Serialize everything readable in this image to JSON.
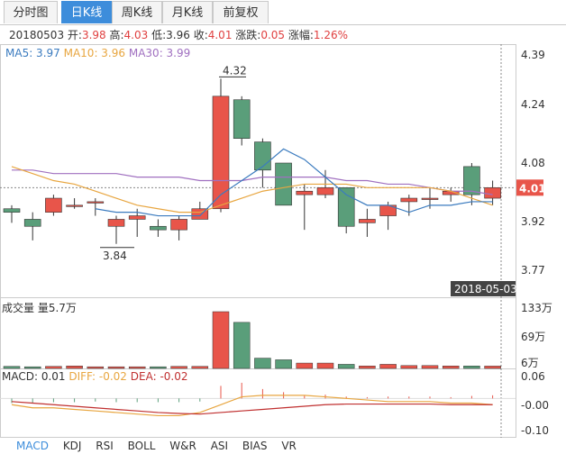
{
  "tabs": [
    {
      "label": "分时图",
      "active": false
    },
    {
      "label": "日K线",
      "active": true
    },
    {
      "label": "周K线",
      "active": false
    },
    {
      "label": "月K线",
      "active": false
    },
    {
      "label": "前复权",
      "active": false
    }
  ],
  "info": {
    "date": "20180503",
    "open_label": "开:",
    "open": "3.98",
    "high_label": "高:",
    "high": "4.03",
    "low_label": "低:",
    "low": "3.96",
    "close_label": "收:",
    "close": "4.01",
    "change_label": "涨跌:",
    "change": "0.05",
    "pct_label": "涨幅:",
    "pct": "1.26%"
  },
  "ma_legend": {
    "ma5": "MA5: 3.97",
    "ma10": "MA10: 3.96",
    "ma30": "MA30: 3.99"
  },
  "vol_legend": "成交量 量5.7万",
  "macd_legend": {
    "macd": "MACD: 0.01",
    "diff": "DIFF: -0.02",
    "dea": "DEA: -0.02"
  },
  "indicators": [
    "MACD",
    "KDJ",
    "RSI",
    "BOLL",
    "W&R",
    "ASI",
    "BIAS",
    "VR"
  ],
  "active_indicator": "MACD",
  "colors": {
    "up": "#e8554a",
    "down": "#5a9e7a",
    "ma5": "#3b7bbf",
    "ma10": "#e8a640",
    "ma30": "#a070c0",
    "accent": "#3d8ddb"
  },
  "chart_data": [
    {
      "type": "candlestick",
      "ylim": [
        3.77,
        4.39
      ],
      "yticks": [
        "4.39",
        "4.24",
        "4.08",
        "3.92",
        "3.77"
      ],
      "max_label": "4.32",
      "min_label": "3.84",
      "current_price": "4.01",
      "crosshair_date": "2018-05-03",
      "candles": [
        {
          "o": 3.95,
          "c": 3.94,
          "h": 3.96,
          "l": 3.91
        },
        {
          "o": 3.92,
          "c": 3.9,
          "h": 3.94,
          "l": 3.86
        },
        {
          "o": 3.94,
          "c": 3.98,
          "h": 3.99,
          "l": 3.93
        },
        {
          "o": 3.96,
          "c": 3.96,
          "h": 3.98,
          "l": 3.95
        },
        {
          "o": 3.97,
          "c": 3.97,
          "h": 3.98,
          "l": 3.93
        },
        {
          "o": 3.9,
          "c": 3.92,
          "h": 3.93,
          "l": 3.85
        },
        {
          "o": 3.92,
          "c": 3.93,
          "h": 3.95,
          "l": 3.87
        },
        {
          "o": 3.9,
          "c": 3.89,
          "h": 3.92,
          "l": 3.87
        },
        {
          "o": 3.89,
          "c": 3.92,
          "h": 3.93,
          "l": 3.86
        },
        {
          "o": 3.92,
          "c": 3.95,
          "h": 3.97,
          "l": 3.92
        },
        {
          "o": 3.95,
          "c": 4.27,
          "h": 4.32,
          "l": 3.94
        },
        {
          "o": 4.26,
          "c": 4.15,
          "h": 4.27,
          "l": 4.13
        },
        {
          "o": 4.14,
          "c": 4.06,
          "h": 4.15,
          "l": 4.01
        },
        {
          "o": 4.08,
          "c": 3.96,
          "h": 4.08,
          "l": 3.96
        },
        {
          "o": 3.99,
          "c": 4.0,
          "h": 4.02,
          "l": 3.89
        },
        {
          "o": 3.99,
          "c": 4.01,
          "h": 4.06,
          "l": 3.98
        },
        {
          "o": 4.01,
          "c": 3.9,
          "h": 4.01,
          "l": 3.88
        },
        {
          "o": 3.91,
          "c": 3.92,
          "h": 3.95,
          "l": 3.87
        },
        {
          "o": 3.93,
          "c": 3.96,
          "h": 3.97,
          "l": 3.89
        },
        {
          "o": 3.97,
          "c": 3.98,
          "h": 3.99,
          "l": 3.93
        },
        {
          "o": 3.98,
          "c": 3.98,
          "h": 4.01,
          "l": 3.95
        },
        {
          "o": 3.99,
          "c": 4.0,
          "h": 4.01,
          "l": 3.97
        },
        {
          "o": 4.07,
          "c": 3.99,
          "h": 4.08,
          "l": 3.96
        },
        {
          "o": 3.98,
          "c": 4.01,
          "h": 4.03,
          "l": 3.96
        }
      ],
      "ma5": [
        null,
        null,
        null,
        null,
        3.95,
        3.94,
        3.94,
        3.93,
        3.93,
        3.93,
        3.99,
        4.03,
        4.07,
        4.12,
        4.09,
        4.04,
        3.99,
        3.96,
        3.96,
        3.94,
        3.96,
        3.96,
        3.97,
        3.97
      ],
      "ma10": [
        4.07,
        4.05,
        4.03,
        4.02,
        4.0,
        3.98,
        3.96,
        3.95,
        3.94,
        3.94,
        3.96,
        3.98,
        4.0,
        4.01,
        4.02,
        4.02,
        4.02,
        4.01,
        4.01,
        4.01,
        4.01,
        4.0,
        3.98,
        3.96
      ],
      "ma30": [
        4.06,
        4.06,
        4.05,
        4.05,
        4.05,
        4.05,
        4.04,
        4.04,
        4.04,
        4.03,
        4.03,
        4.03,
        4.04,
        4.04,
        4.04,
        4.04,
        4.03,
        4.03,
        4.02,
        4.02,
        4.01,
        4.0,
        4.0,
        3.99
      ]
    },
    {
      "type": "bar",
      "title": "成交量",
      "yticks": [
        "133万",
        "69万",
        "6万"
      ],
      "ylim": [
        0,
        138
      ],
      "values": [
        5,
        4,
        5,
        6,
        4,
        4,
        4,
        4,
        5,
        5,
        138,
        112,
        25,
        21,
        13,
        13,
        10,
        6,
        10,
        7,
        7,
        6,
        6,
        5.7
      ]
    },
    {
      "type": "line",
      "title": "MACD",
      "yticks": [
        "0.06",
        "-0.00",
        "-0.10"
      ],
      "ylim": [
        -0.12,
        0.07
      ],
      "macd": [
        -0.015,
        -0.016,
        -0.012,
        -0.012,
        -0.01,
        -0.012,
        -0.012,
        -0.012,
        -0.012,
        -0.01,
        0.04,
        0.05,
        0.03,
        0.02,
        0.01,
        0.012,
        0.006,
        0.004,
        0.006,
        0.006,
        0.006,
        0.004,
        0.008,
        0.01
      ],
      "diff": [
        -0.02,
        -0.03,
        -0.03,
        -0.035,
        -0.04,
        -0.045,
        -0.05,
        -0.055,
        -0.055,
        -0.045,
        -0.02,
        0.005,
        0.01,
        0.01,
        0.01,
        0.005,
        0.0,
        -0.005,
        -0.01,
        -0.01,
        -0.01,
        -0.015,
        -0.015,
        -0.02
      ],
      "dea": [
        -0.01,
        -0.015,
        -0.02,
        -0.025,
        -0.03,
        -0.035,
        -0.04,
        -0.045,
        -0.048,
        -0.05,
        -0.045,
        -0.04,
        -0.035,
        -0.03,
        -0.025,
        -0.02,
        -0.018,
        -0.018,
        -0.018,
        -0.018,
        -0.018,
        -0.02,
        -0.02,
        -0.02
      ]
    }
  ]
}
